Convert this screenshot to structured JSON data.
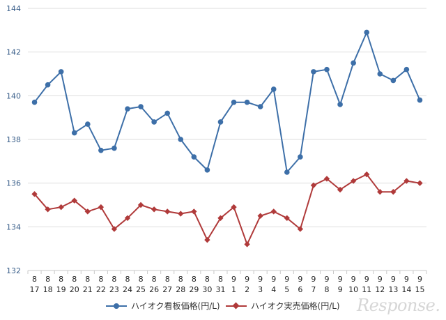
{
  "chart_data": {
    "type": "line",
    "ylim": [
      132,
      144
    ],
    "yticks": [
      "132",
      "134",
      "136",
      "138",
      "140",
      "142",
      "144"
    ],
    "categories": [
      [
        "8",
        "17"
      ],
      [
        "8",
        "18"
      ],
      [
        "8",
        "19"
      ],
      [
        "8",
        "20"
      ],
      [
        "8",
        "21"
      ],
      [
        "8",
        "22"
      ],
      [
        "8",
        "23"
      ],
      [
        "8",
        "24"
      ],
      [
        "8",
        "25"
      ],
      [
        "8",
        "26"
      ],
      [
        "8",
        "27"
      ],
      [
        "8",
        "28"
      ],
      [
        "8",
        "29"
      ],
      [
        "8",
        "30"
      ],
      [
        "8",
        "31"
      ],
      [
        "9",
        "1"
      ],
      [
        "9",
        "2"
      ],
      [
        "9",
        "3"
      ],
      [
        "9",
        "4"
      ],
      [
        "9",
        "5"
      ],
      [
        "9",
        "6"
      ],
      [
        "9",
        "7"
      ],
      [
        "9",
        "8"
      ],
      [
        "9",
        "9"
      ],
      [
        "9",
        "10"
      ],
      [
        "9",
        "11"
      ],
      [
        "9",
        "12"
      ],
      [
        "9",
        "13"
      ],
      [
        "9",
        "14"
      ],
      [
        "9",
        "15"
      ]
    ],
    "series": [
      {
        "name": "ハイオク看板価格(円/L)",
        "color": "#3d6fa8",
        "marker": "circle",
        "values": [
          139.7,
          140.5,
          141.1,
          138.3,
          138.7,
          137.5,
          137.6,
          139.4,
          139.5,
          138.8,
          139.2,
          138.0,
          137.2,
          136.6,
          138.8,
          139.7,
          139.7,
          139.5,
          140.3,
          136.5,
          137.2,
          141.1,
          141.2,
          139.6,
          141.5,
          142.9,
          141.0,
          140.7,
          141.2,
          139.8
        ]
      },
      {
        "name": "ハイオク実売価格(円/L)",
        "color": "#b03a3a",
        "marker": "diamond",
        "values": [
          135.5,
          134.8,
          134.9,
          135.2,
          134.7,
          134.9,
          133.9,
          134.4,
          135.0,
          134.8,
          134.7,
          134.6,
          134.7,
          133.4,
          134.4,
          134.9,
          133.2,
          134.5,
          134.7,
          134.4,
          133.9,
          135.9,
          136.2,
          135.7,
          136.1,
          136.4,
          135.6,
          135.6,
          136.1,
          136.0
        ]
      }
    ],
    "grid": "horizontal",
    "legend_position": "bottom-center"
  },
  "watermark_text": "Response."
}
